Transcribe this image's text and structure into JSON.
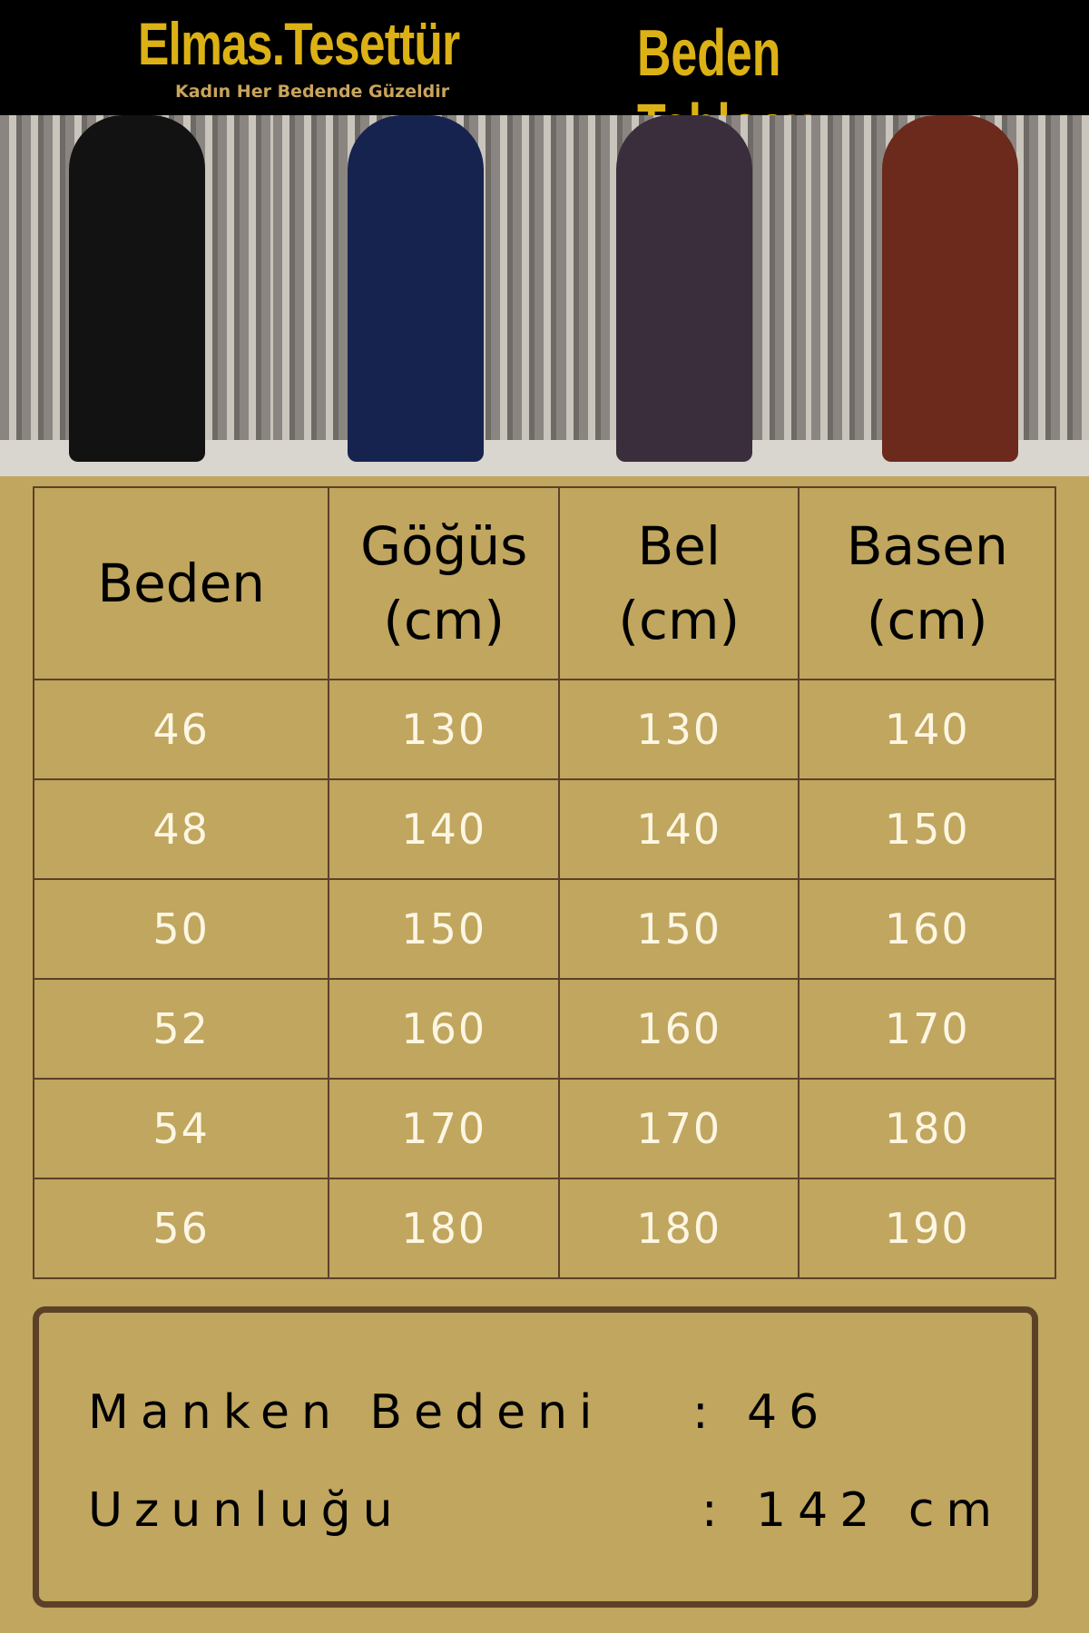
{
  "header": {
    "brand": "Elmas.Tesettür",
    "tagline": "Kadın Her Bedende Güzeldir",
    "title": "Beden Tablosu"
  },
  "photos": [
    {
      "color": "#121212"
    },
    {
      "color": "#16234f"
    },
    {
      "color": "#3a2d3c"
    },
    {
      "color": "#6b2a1c"
    }
  ],
  "table": {
    "headers": [
      "Beden",
      "Göğüs\n(cm)",
      "Bel\n(cm)",
      "Basen\n(cm)"
    ],
    "rows": [
      [
        "46",
        "130",
        "130",
        "140"
      ],
      [
        "48",
        "140",
        "140",
        "150"
      ],
      [
        "50",
        "150",
        "150",
        "160"
      ],
      [
        "52",
        "160",
        "160",
        "170"
      ],
      [
        "54",
        "170",
        "170",
        "180"
      ],
      [
        "56",
        "180",
        "180",
        "190"
      ]
    ]
  },
  "info": {
    "model_size_label": "Manken Bedeni",
    "model_size_value": ": 46",
    "length_label": "Uzunluğu",
    "length_value": ": 142 cm"
  }
}
